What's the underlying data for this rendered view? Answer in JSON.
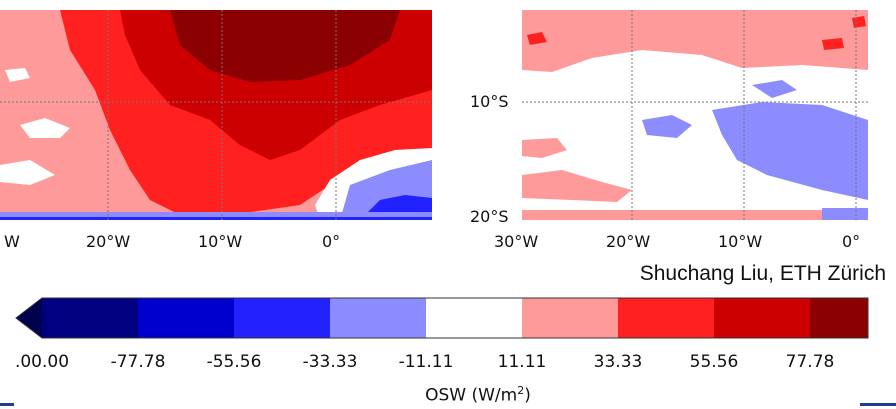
{
  "left_map": {
    "x_ticks": [
      "W",
      "20°W",
      "10°W",
      "0°"
    ]
  },
  "right_map": {
    "x_ticks": [
      "30°W",
      "20°W",
      "10°W",
      "0°"
    ],
    "y_ticks": [
      "10°S",
      "20°S"
    ]
  },
  "credit": "Shuchang Liu, ETH Zürich",
  "colorbar": {
    "label_text": "OSW (W/m",
    "label_sup": "2",
    "label_end": ")",
    "ticks": [
      ".00.00",
      "-77.78",
      "-55.56",
      "-33.33",
      "-11.11",
      "11.11",
      "33.33",
      "55.56",
      "77.78"
    ],
    "colors": [
      "#00004d",
      "#000080",
      "#0000cc",
      "#2222ff",
      "#8c8cff",
      "#ffffff",
      "#ff9a9a",
      "#ff2020",
      "#cc0000",
      "#8b0000"
    ]
  }
}
